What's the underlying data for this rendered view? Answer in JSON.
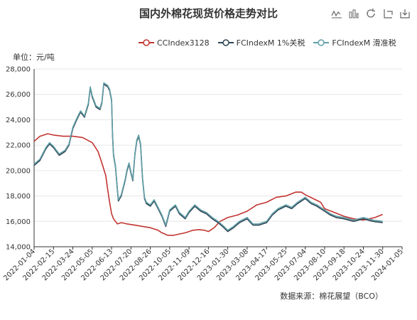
{
  "chart_data": {
    "type": "line",
    "title": "国内外棉花现货价格走势对比",
    "unit_label": "单位：元/吨",
    "source": "数据来源：棉花展望（BCO）",
    "ylim": [
      14000,
      28000
    ],
    "y_ticks": [
      14000,
      16000,
      18000,
      20000,
      22000,
      24000,
      26000,
      28000
    ],
    "y_tick_labels": [
      "14,000",
      "16,000",
      "18,000",
      "20,000",
      "22,000",
      "24,000",
      "26,000",
      "28,000"
    ],
    "x_tick_labels": [
      "2022-01-04",
      "2022-02-15",
      "2022-03-24",
      "2022-05-05",
      "2022-06-13",
      "2022-07-20",
      "2022-08-26",
      "2022-10-05",
      "2022-11-09",
      "2022-12-16",
      "2023-01-30",
      "2023-03-08",
      "2023-04-17",
      "2023-05-25",
      "2023-07-04",
      "2023-08-10",
      "2023-09-18",
      "2023-10-24",
      "2023-11-30",
      "2024-01-05"
    ],
    "series": [
      {
        "name": "CCIndex3128",
        "color": "#c23531",
        "points": [
          [
            0,
            22300
          ],
          [
            0.3,
            22700
          ],
          [
            0.7,
            22900
          ],
          [
            1,
            22800
          ],
          [
            1.5,
            22700
          ],
          [
            2,
            22700
          ],
          [
            2.5,
            22600
          ],
          [
            3,
            22200
          ],
          [
            3.3,
            21500
          ],
          [
            3.5,
            20600
          ],
          [
            3.7,
            19600
          ],
          [
            3.8,
            18500
          ],
          [
            3.9,
            17500
          ],
          [
            4,
            16600
          ],
          [
            4.1,
            16200
          ],
          [
            4.3,
            15800
          ],
          [
            4.5,
            15900
          ],
          [
            4.8,
            15800
          ],
          [
            5.2,
            15700
          ],
          [
            5.6,
            15600
          ],
          [
            6,
            15500
          ],
          [
            6.4,
            15300
          ],
          [
            6.6,
            15100
          ],
          [
            6.9,
            14900
          ],
          [
            7.2,
            14900
          ],
          [
            7.5,
            15000
          ],
          [
            7.8,
            15100
          ],
          [
            8,
            15200
          ],
          [
            8.2,
            15300
          ],
          [
            8.5,
            15350
          ],
          [
            8.8,
            15300
          ],
          [
            9,
            15200
          ],
          [
            9.3,
            15500
          ],
          [
            9.6,
            16000
          ],
          [
            10,
            16300
          ],
          [
            10.5,
            16500
          ],
          [
            11,
            16800
          ],
          [
            11.5,
            17300
          ],
          [
            12,
            17500
          ],
          [
            12.5,
            17900
          ],
          [
            13,
            18000
          ],
          [
            13.5,
            18300
          ],
          [
            13.8,
            18300
          ],
          [
            14,
            18100
          ],
          [
            14.4,
            17800
          ],
          [
            14.8,
            17500
          ],
          [
            15,
            17000
          ],
          [
            15.5,
            16700
          ],
          [
            16,
            16400
          ],
          [
            16.5,
            16200
          ],
          [
            17,
            16100
          ],
          [
            17.3,
            16200
          ],
          [
            17.6,
            16300
          ],
          [
            18,
            16550
          ]
        ]
      },
      {
        "name": "FCIndexM 1%关税",
        "color": "#2f4554",
        "points": [
          [
            0,
            20400
          ],
          [
            0.3,
            20800
          ],
          [
            0.6,
            21700
          ],
          [
            0.8,
            22100
          ],
          [
            1,
            21800
          ],
          [
            1.3,
            21200
          ],
          [
            1.6,
            21500
          ],
          [
            1.8,
            22000
          ],
          [
            2,
            23300
          ],
          [
            2.2,
            24000
          ],
          [
            2.4,
            24600
          ],
          [
            2.6,
            24200
          ],
          [
            2.8,
            25200
          ],
          [
            2.9,
            26500
          ],
          [
            3,
            25800
          ],
          [
            3.2,
            25000
          ],
          [
            3.4,
            24800
          ],
          [
            3.5,
            25300
          ],
          [
            3.6,
            26800
          ],
          [
            3.8,
            26600
          ],
          [
            3.9,
            26300
          ],
          [
            4,
            25500
          ],
          [
            4.05,
            22800
          ],
          [
            4.1,
            21200
          ],
          [
            4.2,
            20300
          ],
          [
            4.3,
            18500
          ],
          [
            4.35,
            17600
          ],
          [
            4.5,
            18000
          ],
          [
            4.7,
            19200
          ],
          [
            4.8,
            20000
          ],
          [
            4.9,
            20500
          ],
          [
            5.0,
            19800
          ],
          [
            5.1,
            19200
          ],
          [
            5.2,
            21200
          ],
          [
            5.3,
            22300
          ],
          [
            5.4,
            22700
          ],
          [
            5.5,
            22000
          ],
          [
            5.6,
            19300
          ],
          [
            5.7,
            17800
          ],
          [
            5.8,
            17400
          ],
          [
            6,
            17200
          ],
          [
            6.2,
            17600
          ],
          [
            6.4,
            17000
          ],
          [
            6.6,
            16400
          ],
          [
            6.8,
            15600
          ],
          [
            7,
            16800
          ],
          [
            7.3,
            17200
          ],
          [
            7.5,
            16600
          ],
          [
            7.8,
            16200
          ],
          [
            8,
            16700
          ],
          [
            8.3,
            17200
          ],
          [
            8.6,
            16800
          ],
          [
            8.9,
            16600
          ],
          [
            9.2,
            16200
          ],
          [
            9.5,
            15900
          ],
          [
            9.8,
            15500
          ],
          [
            10,
            15200
          ],
          [
            10.3,
            15500
          ],
          [
            10.6,
            15900
          ],
          [
            11,
            16200
          ],
          [
            11.3,
            15700
          ],
          [
            11.6,
            15700
          ],
          [
            12,
            15900
          ],
          [
            12.3,
            16500
          ],
          [
            12.6,
            16900
          ],
          [
            13,
            17200
          ],
          [
            13.3,
            17000
          ],
          [
            13.6,
            17400
          ],
          [
            14,
            17800
          ],
          [
            14.3,
            17400
          ],
          [
            14.6,
            17200
          ],
          [
            15,
            16800
          ],
          [
            15.3,
            16500
          ],
          [
            15.6,
            16300
          ],
          [
            16,
            16200
          ],
          [
            16.5,
            16000
          ],
          [
            17,
            16200
          ],
          [
            17.5,
            16000
          ],
          [
            18,
            15900
          ]
        ]
      },
      {
        "name": "FCIndexM 滑准税",
        "color": "#61a0a8",
        "points": [
          [
            0,
            20500
          ],
          [
            0.3,
            20900
          ],
          [
            0.6,
            21800
          ],
          [
            0.8,
            22200
          ],
          [
            1,
            21900
          ],
          [
            1.3,
            21300
          ],
          [
            1.6,
            21600
          ],
          [
            1.8,
            22100
          ],
          [
            2,
            23400
          ],
          [
            2.2,
            24100
          ],
          [
            2.4,
            24700
          ],
          [
            2.6,
            24300
          ],
          [
            2.8,
            25300
          ],
          [
            2.9,
            26600
          ],
          [
            3,
            25900
          ],
          [
            3.2,
            25100
          ],
          [
            3.4,
            24900
          ],
          [
            3.5,
            25400
          ],
          [
            3.6,
            26900
          ],
          [
            3.8,
            26700
          ],
          [
            3.9,
            26400
          ],
          [
            4,
            25600
          ],
          [
            4.05,
            22900
          ],
          [
            4.1,
            21300
          ],
          [
            4.2,
            20400
          ],
          [
            4.3,
            18600
          ],
          [
            4.35,
            17700
          ],
          [
            4.5,
            18100
          ],
          [
            4.7,
            19300
          ],
          [
            4.8,
            20100
          ],
          [
            4.9,
            20600
          ],
          [
            5.0,
            19900
          ],
          [
            5.1,
            19300
          ],
          [
            5.2,
            21300
          ],
          [
            5.3,
            22400
          ],
          [
            5.4,
            22800
          ],
          [
            5.5,
            22100
          ],
          [
            5.6,
            19400
          ],
          [
            5.7,
            17900
          ],
          [
            5.8,
            17500
          ],
          [
            6,
            17300
          ],
          [
            6.2,
            17700
          ],
          [
            6.4,
            17100
          ],
          [
            6.6,
            16500
          ],
          [
            6.8,
            15700
          ],
          [
            7,
            16900
          ],
          [
            7.3,
            17300
          ],
          [
            7.5,
            16700
          ],
          [
            7.8,
            16300
          ],
          [
            8,
            16800
          ],
          [
            8.3,
            17300
          ],
          [
            8.6,
            16900
          ],
          [
            8.9,
            16700
          ],
          [
            9.2,
            16300
          ],
          [
            9.5,
            16000
          ],
          [
            9.8,
            15600
          ],
          [
            10,
            15300
          ],
          [
            10.3,
            15600
          ],
          [
            10.6,
            16000
          ],
          [
            11,
            16300
          ],
          [
            11.3,
            15800
          ],
          [
            11.6,
            15800
          ],
          [
            12,
            16000
          ],
          [
            12.3,
            16600
          ],
          [
            12.6,
            17000
          ],
          [
            13,
            17300
          ],
          [
            13.3,
            17100
          ],
          [
            13.6,
            17500
          ],
          [
            14,
            17900
          ],
          [
            14.3,
            17500
          ],
          [
            14.6,
            17300
          ],
          [
            15,
            16900
          ],
          [
            15.3,
            16600
          ],
          [
            15.6,
            16400
          ],
          [
            16,
            16300
          ],
          [
            16.5,
            16100
          ],
          [
            17,
            16300
          ],
          [
            17.5,
            16100
          ],
          [
            18,
            16000
          ]
        ]
      }
    ]
  }
}
